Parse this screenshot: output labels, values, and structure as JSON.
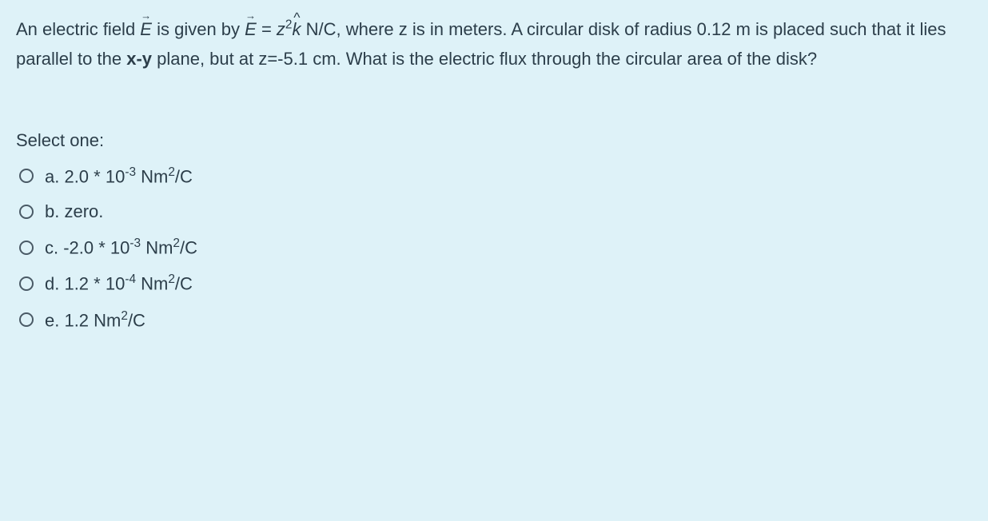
{
  "question": {
    "part1": "An electric field ",
    "vec1": "E",
    "part2": " is given by ",
    "vec2": "E",
    "eq": " = ",
    "z2": "z",
    "sup2": "2",
    "khat": "k",
    "part3": " N/C, where z is in meters.  A circular disk of radius 0.12 m is placed such that it lies parallel to the ",
    "bold_xy": "x-y",
    "part4": " plane, but at z=-5.1 cm.  What is the electric flux through the circular area of the disk?"
  },
  "prompt": "Select one:",
  "options": {
    "a": {
      "prefix": "a. 2.0 * 10",
      "sup1": "-3",
      "mid": " Nm",
      "sup2": "2",
      "suffix": "/C"
    },
    "b": {
      "text": "b. zero."
    },
    "c": {
      "prefix": "c. -2.0 * 10",
      "sup1": "-3",
      "mid": " Nm",
      "sup2": "2",
      "suffix": "/C"
    },
    "d": {
      "prefix": "d. 1.2 * 10",
      "sup1": "-4",
      "mid": " Nm",
      "sup2": "2",
      "suffix": "/C"
    },
    "e": {
      "prefix": "e. 1.2 Nm",
      "sup2": "2",
      "suffix": "/C"
    }
  }
}
